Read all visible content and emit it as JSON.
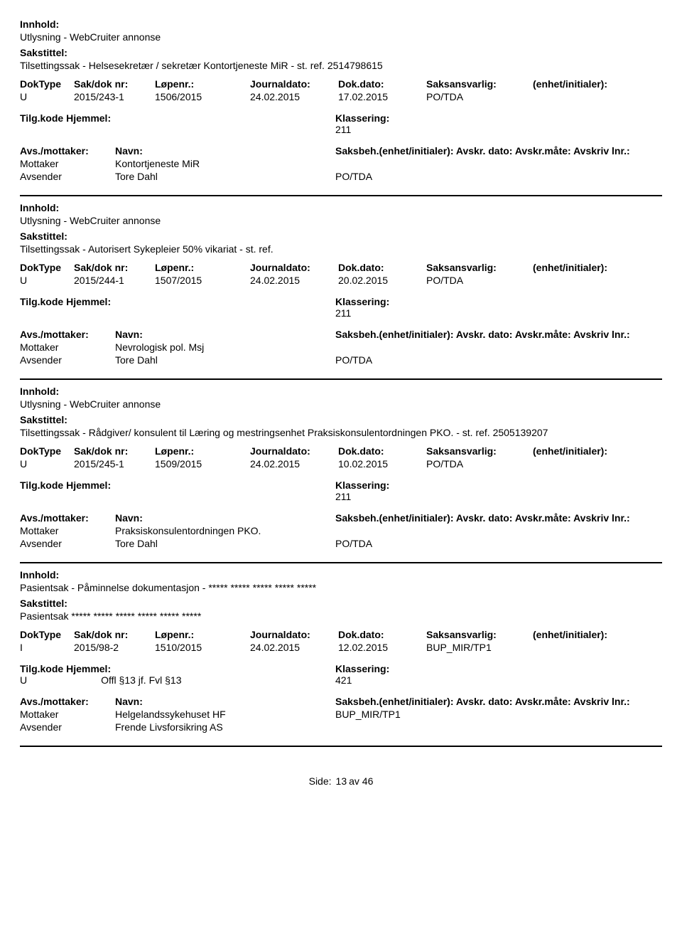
{
  "labels": {
    "innhold": "Innhold:",
    "sakstittel": "Sakstittel:",
    "doktype": "DokType",
    "sakdok": "Sak/dok nr:",
    "lopenr": "Løpenr.:",
    "journaldato": "Journaldato:",
    "dokdato": "Dok.dato:",
    "saksansvarlig": "Saksansvarlig:",
    "enhet": "(enhet/initialer):",
    "tilgkode": "Tilg.kode",
    "hjemmel": "Hjemmel:",
    "klassering": "Klassering:",
    "avsmottaker": "Avs./mottaker:",
    "navn": "Navn:",
    "saksbeh_line": "Saksbeh.(enhet/initialer): Avskr. dato:  Avskr.måte: Avskriv lnr.:",
    "mottaker": "Mottaker",
    "avsender": "Avsender",
    "side": "Side:",
    "av": "av"
  },
  "entries": [
    {
      "innhold": "Utlysning - WebCruiter annonse",
      "sakstittel": "Tilsettingssak - Helsesekretær / sekretær Kontortjeneste MiR - st. ref. 2514798615",
      "doktype": "U",
      "sakdok": "2015/243-1",
      "lopenr": "1506/2015",
      "journaldato": "24.02.2015",
      "dokdato": "17.02.2015",
      "saksansvarlig": "PO/TDA",
      "enhet": "",
      "tilgkode": "",
      "hjemmel": "",
      "klassering": "211",
      "parties": [
        {
          "role": "Mottaker",
          "name": "Kontortjeneste MiR",
          "code": ""
        },
        {
          "role": "Avsender",
          "name": "Tore Dahl",
          "code": "PO/TDA"
        }
      ],
      "saksbeh_code": ""
    },
    {
      "innhold": "Utlysning - WebCruiter annonse",
      "sakstittel": "Tilsettingssak - Autorisert Sykepleier 50%  vikariat  - st. ref.",
      "doktype": "U",
      "sakdok": "2015/244-1",
      "lopenr": "1507/2015",
      "journaldato": "24.02.2015",
      "dokdato": "20.02.2015",
      "saksansvarlig": "PO/TDA",
      "enhet": "",
      "tilgkode": "",
      "hjemmel": "",
      "klassering": "211",
      "parties": [
        {
          "role": "Mottaker",
          "name": "Nevrologisk pol. Msj",
          "code": ""
        },
        {
          "role": "Avsender",
          "name": "Tore Dahl",
          "code": "PO/TDA"
        }
      ],
      "saksbeh_code": ""
    },
    {
      "innhold": "Utlysning - WebCruiter annonse",
      "sakstittel": "Tilsettingssak - Rådgiver/ konsulent til Læring og mestringsenhet Praksiskonsulentordningen PKO. - st. ref. 2505139207",
      "doktype": "U",
      "sakdok": "2015/245-1",
      "lopenr": "1509/2015",
      "journaldato": "24.02.2015",
      "dokdato": "10.02.2015",
      "saksansvarlig": "PO/TDA",
      "enhet": "",
      "tilgkode": "",
      "hjemmel": "",
      "klassering": "211",
      "parties": [
        {
          "role": "Mottaker",
          "name": "Praksiskonsulentordningen PKO.",
          "code": ""
        },
        {
          "role": "Avsender",
          "name": "Tore Dahl",
          "code": "PO/TDA"
        }
      ],
      "saksbeh_code": ""
    },
    {
      "innhold": "Pasientsak - Påminnelse dokumentasjon -  ***** ***** ***** ***** *****",
      "sakstittel": "Pasientsak ***** ***** ***** ***** ***** *****",
      "doktype": "I",
      "sakdok": "2015/98-2",
      "lopenr": "1510/2015",
      "journaldato": "24.02.2015",
      "dokdato": "12.02.2015",
      "saksansvarlig": "BUP_MIR/TP1",
      "enhet": "",
      "tilgkode": "U",
      "hjemmel": "Offl §13 jf. Fvl §13",
      "klassering": "421",
      "parties": [
        {
          "role": "Mottaker",
          "name": "Helgelandssykehuset HF",
          "code": "BUP_MIR/TP1"
        },
        {
          "role": "Avsender",
          "name": "Frende Livsforsikring AS",
          "code": ""
        }
      ],
      "saksbeh_code": ""
    }
  ],
  "page": {
    "current": "13",
    "total": "46"
  }
}
